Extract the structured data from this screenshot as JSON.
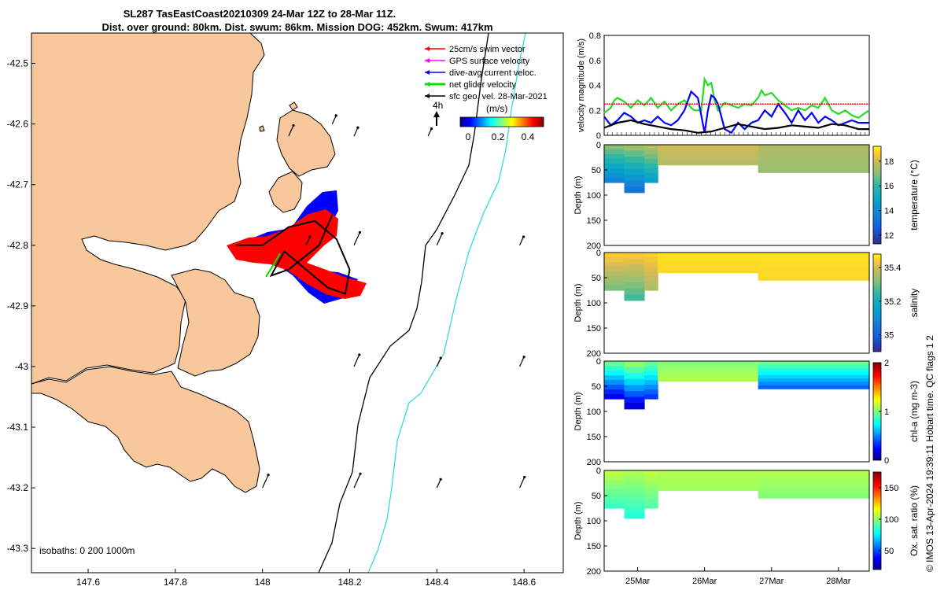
{
  "title": {
    "line1": "SL287 TasEastCoast20210309 24-Mar 12Z to 28-Mar 11Z.",
    "line2": "Dist. over ground: 80km. Dist. swum: 86km. Mission DOG: 452km. Swum: 417km"
  },
  "credit": "© IMOS 13-Apr-2024 19:39:11 Hobart time. QC flags 1  2",
  "colors": {
    "land": "#f8c79c",
    "swim_vector": "#ff0000",
    "gps_velocity": "#ff00ff",
    "dive_current": "#0000ff",
    "net_velocity": "#00e000",
    "geo_velocity": "#000000",
    "isobath_200": "#000000",
    "isobath_1000": "#33dddd"
  },
  "map": {
    "xlim": [
      147.47,
      148.69
    ],
    "ylim": [
      -43.34,
      -42.45
    ],
    "xticks": [
      "147.6",
      "147.8",
      "148",
      "148.2",
      "148.4",
      "148.6"
    ],
    "yticks": [
      "-42.5",
      "-42.6",
      "-42.7",
      "-42.8",
      "-42.9",
      "-43",
      "-43.1",
      "-43.2",
      "-43.3"
    ],
    "legend": [
      {
        "label": "25cm/s swim vector",
        "color": "#ff0000"
      },
      {
        "label": "GPS surface velocity",
        "color": "#ff00ff"
      },
      {
        "label": "dive-avg current veloc.",
        "color": "#0000ff"
      },
      {
        "label": "net glider velocity",
        "color": "#00e000"
      },
      {
        "label": "sfc geo. vel. 28-Mar-2021",
        "color": "#000000"
      }
    ],
    "colorbar_title": "(m/s)",
    "colorbar_ticks": [
      "0",
      "0.2",
      "0.4"
    ],
    "time_label": "4h",
    "isobaths": "isobaths: 0   200  1000m",
    "track": [
      [
        147.94,
        -42.8
      ],
      [
        148.0,
        -42.8
      ],
      [
        148.06,
        -42.77
      ],
      [
        148.12,
        -42.76
      ],
      [
        148.17,
        -42.79
      ],
      [
        148.2,
        -42.84
      ],
      [
        148.19,
        -42.88
      ],
      [
        148.15,
        -42.87
      ],
      [
        148.1,
        -42.84
      ],
      [
        148.05,
        -42.81
      ],
      [
        148.02,
        -42.85
      ],
      [
        148.06,
        -42.84
      ],
      [
        148.13,
        -42.8
      ],
      [
        148.16,
        -42.75
      ]
    ],
    "geo_arrows": [
      [
        148.06,
        -42.62,
        0.04
      ],
      [
        148.21,
        -42.62,
        0.02
      ],
      [
        148.38,
        -42.62,
        0.01
      ],
      [
        148.1,
        -42.8,
        0.02
      ],
      [
        148.21,
        -42.8,
        0.06
      ],
      [
        148.4,
        -42.8,
        0.05
      ],
      [
        148.59,
        -42.8,
        0.02
      ],
      [
        148.21,
        -43.0,
        0.05
      ],
      [
        148.4,
        -43.0,
        0.02
      ],
      [
        148.59,
        -43.0,
        0.03
      ],
      [
        148.0,
        -43.2,
        0.06
      ],
      [
        148.21,
        -43.2,
        0.07
      ],
      [
        148.4,
        -43.2,
        0.02
      ],
      [
        148.59,
        -43.2,
        0.04
      ],
      [
        148.16,
        -42.6,
        0.02
      ]
    ]
  },
  "chart_data": [
    {
      "type": "line",
      "ylabel": "velocity magnitude (m/s)",
      "ylim": [
        0,
        0.8
      ],
      "yticks": [
        "0",
        "0.2",
        "0.4",
        "0.6",
        "0.8"
      ],
      "xlim_days": [
        24.5,
        28.46
      ],
      "series": [
        {
          "name": "net glider velocity",
          "color": "#22dd22",
          "x": [
            24.5,
            24.6,
            24.65,
            24.7,
            24.8,
            24.9,
            25.0,
            25.1,
            25.2,
            25.3,
            25.4,
            25.5,
            25.6,
            25.7,
            25.8,
            25.85,
            25.95,
            26.0,
            26.05,
            26.1,
            26.15,
            26.2,
            26.3,
            26.4,
            26.5,
            26.6,
            26.7,
            26.8,
            26.85,
            26.9,
            27.0,
            27.1,
            27.2,
            27.3,
            27.4,
            27.5,
            27.6,
            27.7,
            27.8,
            27.9,
            28.0,
            28.1,
            28.2,
            28.3,
            28.4,
            28.46
          ],
          "values": [
            0.18,
            0.22,
            0.28,
            0.3,
            0.27,
            0.22,
            0.28,
            0.24,
            0.3,
            0.22,
            0.27,
            0.2,
            0.25,
            0.28,
            0.22,
            0.2,
            0.2,
            0.45,
            0.4,
            0.42,
            0.28,
            0.2,
            0.26,
            0.24,
            0.22,
            0.25,
            0.24,
            0.3,
            0.36,
            0.32,
            0.34,
            0.28,
            0.24,
            0.2,
            0.22,
            0.2,
            0.24,
            0.22,
            0.3,
            0.2,
            0.17,
            0.2,
            0.16,
            0.14,
            0.18,
            0.2
          ]
        },
        {
          "name": "dive-avg current veloc.",
          "color": "#0000ff",
          "x": [
            24.5,
            24.6,
            24.7,
            24.8,
            24.9,
            25.0,
            25.1,
            25.2,
            25.3,
            25.4,
            25.5,
            25.6,
            25.7,
            25.8,
            25.9,
            26.0,
            26.05,
            26.1,
            26.15,
            26.2,
            26.3,
            26.4,
            26.5,
            26.6,
            26.7,
            26.8,
            26.9,
            27.0,
            27.1,
            27.2,
            27.3,
            27.4,
            27.5,
            27.6,
            27.7,
            27.8,
            27.9,
            28.0,
            28.1,
            28.2,
            28.3,
            28.46
          ],
          "values": [
            0.15,
            0.08,
            0.12,
            0.18,
            0.15,
            0.1,
            0.12,
            0.1,
            0.15,
            0.1,
            0.08,
            0.12,
            0.2,
            0.35,
            0.3,
            0.02,
            0.2,
            0.32,
            0.3,
            0.25,
            0.05,
            0.02,
            0.1,
            0.05,
            0.1,
            0.12,
            0.2,
            0.15,
            0.25,
            0.18,
            0.1,
            0.2,
            0.12,
            0.18,
            0.1,
            0.15,
            0.12,
            0.08,
            0.1,
            0.12,
            0.1,
            0.1
          ]
        },
        {
          "name": "sfc geo. vel.",
          "color": "#000000",
          "x": [
            24.5,
            24.7,
            24.9,
            25.1,
            25.3,
            25.5,
            25.7,
            25.9,
            26.1,
            26.3,
            26.5,
            26.7,
            26.9,
            27.1,
            27.3,
            27.5,
            27.7,
            27.9,
            28.1,
            28.3,
            28.46
          ],
          "values": [
            0.06,
            0.1,
            0.12,
            0.09,
            0.07,
            0.05,
            0.04,
            0.02,
            0.03,
            0.06,
            0.09,
            0.07,
            0.05,
            0.06,
            0.08,
            0.07,
            0.06,
            0.09,
            0.08,
            0.05,
            0.05
          ]
        },
        {
          "name": "25cm/s swim vector",
          "color": "#ff0000",
          "x": [
            24.5,
            28.46
          ],
          "values": [
            0.25,
            0.25
          ]
        }
      ]
    },
    {
      "type": "heatmap",
      "variable": "temperature",
      "ylabel": "Depth (m)",
      "cbar_label": "temperature (°C)",
      "ylim": [
        0,
        200
      ],
      "yticks": [
        "0",
        "50",
        "100",
        "150",
        "200"
      ],
      "clim": [
        11.3,
        19.2
      ],
      "cbar_ticks": [
        "12",
        "14",
        "16",
        "18"
      ],
      "profiles": [
        {
          "from": 24.5,
          "to": 24.8,
          "depth": 75,
          "surface": 17.2,
          "deep": 13.5
        },
        {
          "from": 24.8,
          "to": 25.1,
          "depth": 95,
          "surface": 17.5,
          "deep": 13.0
        },
        {
          "from": 25.1,
          "to": 25.3,
          "depth": 75,
          "surface": 17.8,
          "deep": 14.5
        },
        {
          "from": 25.3,
          "to": 26.8,
          "depth": 40,
          "surface": 18.0,
          "deep": 17.6
        },
        {
          "from": 26.8,
          "to": 28.46,
          "depth": 55,
          "surface": 17.6,
          "deep": 17.2
        }
      ]
    },
    {
      "type": "heatmap",
      "variable": "salinity",
      "ylabel": "Depth (m)",
      "cbar_label": "salinity",
      "ylim": [
        0,
        200
      ],
      "yticks": [
        "0",
        "50",
        "100",
        "150",
        "200"
      ],
      "clim": [
        34.9,
        35.48
      ],
      "cbar_ticks": [
        "35",
        "35.2",
        "35.4"
      ],
      "profiles": [
        {
          "from": 24.5,
          "to": 24.8,
          "depth": 75,
          "surface": 35.45,
          "deep": 35.3
        },
        {
          "from": 24.8,
          "to": 25.1,
          "depth": 95,
          "surface": 35.45,
          "deep": 35.25
        },
        {
          "from": 25.1,
          "to": 25.3,
          "depth": 75,
          "surface": 35.45,
          "deep": 35.35
        },
        {
          "from": 25.3,
          "to": 26.8,
          "depth": 40,
          "surface": 35.46,
          "deep": 35.45
        },
        {
          "from": 26.8,
          "to": 28.46,
          "depth": 55,
          "surface": 35.46,
          "deep": 35.45
        }
      ]
    },
    {
      "type": "heatmap",
      "variable": "chl-a",
      "ylabel": "Depth (m)",
      "cbar_label": "chl-a (mg m-3)",
      "ylim": [
        0,
        200
      ],
      "yticks": [
        "0",
        "50",
        "100",
        "150",
        "200"
      ],
      "clim": [
        0,
        2
      ],
      "cbar_ticks": [
        "0",
        "1",
        "2"
      ],
      "profiles": [
        {
          "from": 24.5,
          "to": 24.8,
          "depth": 75,
          "surface": 1.0,
          "deep": 0.15
        },
        {
          "from": 24.8,
          "to": 25.1,
          "depth": 95,
          "surface": 1.1,
          "deep": 0.1
        },
        {
          "from": 25.1,
          "to": 25.3,
          "depth": 75,
          "surface": 1.0,
          "deep": 0.3
        },
        {
          "from": 25.3,
          "to": 26.8,
          "depth": 40,
          "surface": 1.0,
          "deep": 1.1
        },
        {
          "from": 26.8,
          "to": 28.46,
          "depth": 55,
          "surface": 1.0,
          "deep": 0.4
        }
      ]
    },
    {
      "type": "heatmap",
      "variable": "oxygen",
      "ylabel": "Depth (m)",
      "cbar_label": "Ox. sat. ratio (%)",
      "ylim": [
        0,
        200
      ],
      "yticks": [
        "0",
        "50",
        "100",
        "150",
        "200"
      ],
      "clim": [
        20,
        175
      ],
      "cbar_ticks": [
        "50",
        "100",
        "150"
      ],
      "profiles": [
        {
          "from": 24.5,
          "to": 24.8,
          "depth": 75,
          "surface": 108,
          "deep": 85
        },
        {
          "from": 24.8,
          "to": 25.1,
          "depth": 95,
          "surface": 105,
          "deep": 82
        },
        {
          "from": 25.1,
          "to": 25.3,
          "depth": 75,
          "surface": 108,
          "deep": 90
        },
        {
          "from": 25.3,
          "to": 26.8,
          "depth": 40,
          "surface": 105,
          "deep": 102
        },
        {
          "from": 26.8,
          "to": 28.46,
          "depth": 55,
          "surface": 105,
          "deep": 98
        }
      ]
    }
  ],
  "time_axis": {
    "labels": [
      "25Mar",
      "26Mar",
      "27Mar",
      "28Mar"
    ],
    "days": [
      25,
      26,
      27,
      28
    ]
  }
}
